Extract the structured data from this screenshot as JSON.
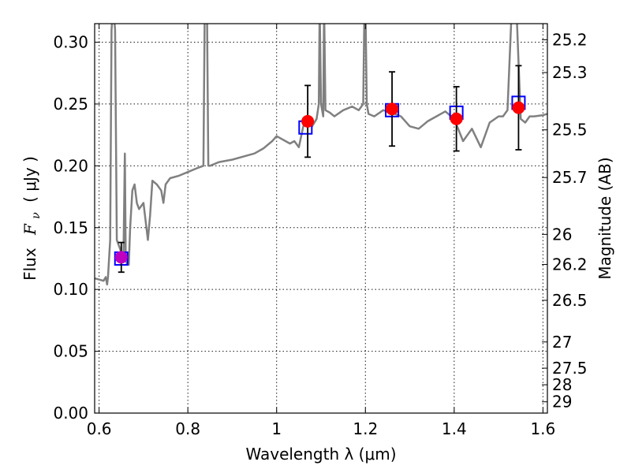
{
  "chart_data": {
    "type": "scatter",
    "xlabel": "Wavelength  λ (μm)",
    "ylabel_text": "Flux",
    "ylabel_symbol": "F",
    "ylabel_subscript": "ν",
    "ylabel_units": "( μJy )",
    "y2label": "Magnitude (AB)",
    "xlim": [
      0.59,
      1.61
    ],
    "ylim": [
      0.0,
      0.315
    ],
    "grid": true,
    "x_ticks": [
      0.6,
      0.8,
      1.0,
      1.2,
      1.4,
      1.6
    ],
    "x_tick_labels": [
      "0.6",
      "0.8",
      "1",
      "1.2",
      "1.4",
      "1.6"
    ],
    "y_ticks": [
      0.0,
      0.05,
      0.1,
      0.15,
      0.2,
      0.25,
      0.3
    ],
    "y_tick_labels": [
      "0.00",
      "0.05",
      "0.10",
      "0.15",
      "0.20",
      "0.25",
      "0.30"
    ],
    "mag_ticks": [
      25.2,
      25.3,
      25.5,
      25.7,
      26,
      26.2,
      26.5,
      27,
      27.5,
      28,
      29
    ],
    "mag_tick_labels": [
      "25.2",
      "25.3",
      "25.5",
      "25.7",
      "26",
      "26.2",
      "26.5",
      "27",
      "27.5",
      "28",
      "29"
    ],
    "series": [
      {
        "name": "model spectrum",
        "kind": "line",
        "color": "#808080",
        "x": [
          0.59,
          0.6,
          0.61,
          0.615,
          0.618,
          0.62,
          0.625,
          0.628,
          0.632,
          0.636,
          0.64,
          0.645,
          0.65,
          0.655,
          0.658,
          0.66,
          0.663,
          0.667,
          0.67,
          0.675,
          0.68,
          0.685,
          0.69,
          0.7,
          0.71,
          0.715,
          0.72,
          0.73,
          0.74,
          0.745,
          0.75,
          0.76,
          0.78,
          0.8,
          0.82,
          0.835,
          0.838,
          0.84,
          0.843,
          0.846,
          0.85,
          0.87,
          0.9,
          0.93,
          0.95,
          0.97,
          0.99,
          1.0,
          1.02,
          1.03,
          1.04,
          1.05,
          1.06,
          1.07,
          1.08,
          1.09,
          1.095,
          1.097,
          1.1,
          1.105,
          1.107,
          1.11,
          1.12,
          1.13,
          1.15,
          1.17,
          1.185,
          1.195,
          1.198,
          1.2,
          1.203,
          1.207,
          1.22,
          1.24,
          1.26,
          1.28,
          1.3,
          1.32,
          1.34,
          1.36,
          1.38,
          1.4,
          1.42,
          1.44,
          1.46,
          1.48,
          1.5,
          1.51,
          1.52,
          1.53,
          1.54,
          1.55,
          1.56,
          1.57,
          1.58,
          1.6,
          1.61
        ],
        "y": [
          0.109,
          0.108,
          0.107,
          0.11,
          0.104,
          0.11,
          0.14,
          0.31,
          0.33,
          0.31,
          0.14,
          0.135,
          0.13,
          0.13,
          0.21,
          0.125,
          0.12,
          0.12,
          0.15,
          0.18,
          0.185,
          0.17,
          0.165,
          0.17,
          0.14,
          0.16,
          0.188,
          0.185,
          0.18,
          0.17,
          0.185,
          0.19,
          0.192,
          0.195,
          0.198,
          0.2,
          0.33,
          0.33,
          0.33,
          0.2,
          0.2,
          0.203,
          0.205,
          0.208,
          0.21,
          0.214,
          0.22,
          0.224,
          0.22,
          0.218,
          0.22,
          0.215,
          0.232,
          0.235,
          0.232,
          0.238,
          0.25,
          0.33,
          0.25,
          0.24,
          0.33,
          0.245,
          0.243,
          0.24,
          0.245,
          0.248,
          0.245,
          0.25,
          0.33,
          0.33,
          0.25,
          0.242,
          0.24,
          0.245,
          0.243,
          0.24,
          0.232,
          0.23,
          0.236,
          0.24,
          0.244,
          0.238,
          0.22,
          0.23,
          0.215,
          0.235,
          0.24,
          0.24,
          0.245,
          0.33,
          0.33,
          0.238,
          0.235,
          0.24,
          0.24,
          0.241,
          0.242
        ]
      },
      {
        "name": "model photometry",
        "kind": "open-square",
        "color": "#0000ff",
        "x": [
          0.65,
          1.065,
          1.26,
          1.405,
          1.545
        ],
        "y": [
          0.125,
          0.231,
          0.245,
          0.243,
          0.251
        ]
      },
      {
        "name": "observed photometry",
        "kind": "filled-circle",
        "color": "#ff0000",
        "x": [
          1.07,
          1.26,
          1.405,
          1.545
        ],
        "y": [
          0.236,
          0.246,
          0.238,
          0.247
        ],
        "yerr": [
          0.029,
          0.03,
          0.026,
          0.034
        ]
      },
      {
        "name": "observed photometry (optical)",
        "kind": "filled-circle",
        "color": "#bf00bf",
        "x": [
          0.65
        ],
        "y": [
          0.126
        ],
        "yerr": [
          0.012
        ]
      }
    ]
  }
}
